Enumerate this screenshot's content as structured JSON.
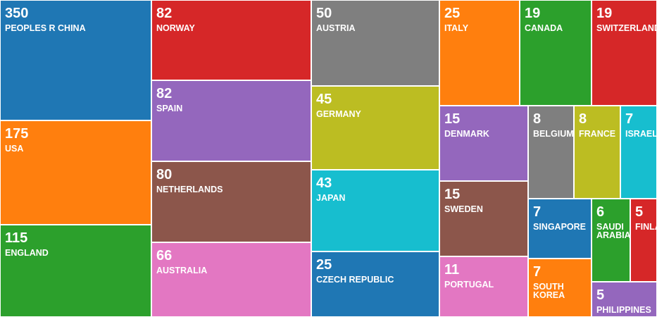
{
  "chart_data": {
    "type": "treemap",
    "items": [
      {
        "label": "PEOPLES R CHINA",
        "value": 350,
        "color": "#1f77b4"
      },
      {
        "label": "USA",
        "value": 175,
        "color": "#ff7f0e"
      },
      {
        "label": "ENGLAND",
        "value": 115,
        "color": "#2ca02c"
      },
      {
        "label": "NORWAY",
        "value": 82,
        "color": "#d62728"
      },
      {
        "label": "SPAIN",
        "value": 82,
        "color": "#9467bd"
      },
      {
        "label": "NETHERLANDS",
        "value": 80,
        "color": "#8c564b"
      },
      {
        "label": "AUSTRALIA",
        "value": 66,
        "color": "#e377c2"
      },
      {
        "label": "AUSTRIA",
        "value": 50,
        "color": "#7f7f7f"
      },
      {
        "label": "GERMANY",
        "value": 45,
        "color": "#bcbd22"
      },
      {
        "label": "JAPAN",
        "value": 43,
        "color": "#17becf"
      },
      {
        "label": "CZECH REPUBLIC",
        "value": 25,
        "color": "#1f77b4"
      },
      {
        "label": "ITALY",
        "value": 25,
        "color": "#ff7f0e"
      },
      {
        "label": "CANADA",
        "value": 19,
        "color": "#2ca02c"
      },
      {
        "label": "SWITZERLAND",
        "value": 19,
        "color": "#d62728"
      },
      {
        "label": "DENMARK",
        "value": 15,
        "color": "#9467bd"
      },
      {
        "label": "SWEDEN",
        "value": 15,
        "color": "#8c564b"
      },
      {
        "label": "PORTUGAL",
        "value": 11,
        "color": "#e377c2"
      },
      {
        "label": "BELGIUM",
        "value": 8,
        "color": "#7f7f7f"
      },
      {
        "label": "FRANCE",
        "value": 8,
        "color": "#bcbd22"
      },
      {
        "label": "ISRAEL",
        "value": 7,
        "color": "#17becf"
      },
      {
        "label": "SINGAPORE",
        "value": 7,
        "color": "#1f77b4"
      },
      {
        "label": "SOUTH\nKOREA",
        "value": 7,
        "color": "#ff7f0e"
      },
      {
        "label": "SAUDI\nARABIA",
        "value": 6,
        "color": "#2ca02c"
      },
      {
        "label": "FINLAND",
        "value": 5,
        "color": "#d62728"
      },
      {
        "label": "PHILIPPINES",
        "value": 5,
        "color": "#9467bd"
      }
    ]
  }
}
